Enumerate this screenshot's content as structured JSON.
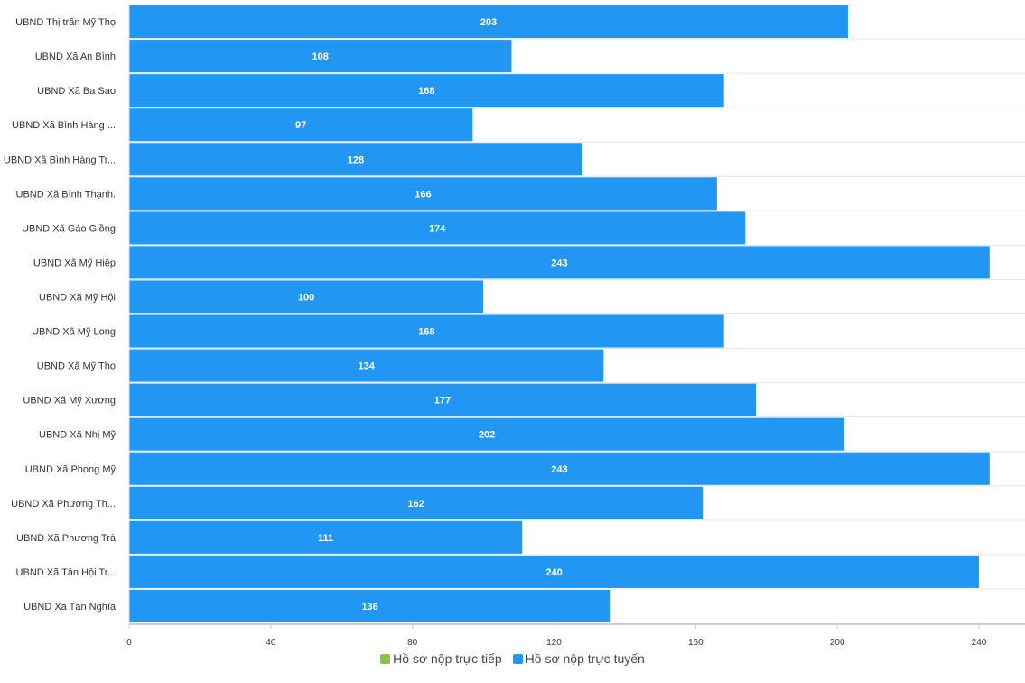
{
  "chart_data": {
    "type": "bar",
    "orientation": "horizontal",
    "categories": [
      "UBND Thị trấn Mỹ Thọ",
      "UBND Xã An Bình",
      "UBND Xã Ba Sao",
      "UBND Xã Bình Hàng ...",
      "UBND Xã Bình Hàng Tr...",
      "UBND Xã Bình Thạnh.",
      "UBND Xã Gáo Giồng",
      "UBND Xã Mỹ Hiệp",
      "UBND Xã Mỹ Hội",
      "UBND Xã Mỹ Long",
      "UBND Xã Mỹ Thọ",
      "UBND Xã Mỹ Xương",
      "UBND Xã Nhị Mỹ",
      "UBND Xã Phong Mỹ",
      "UBND Xã Phương Th...",
      "UBND Xã Phương Trà",
      "UBND Xã Tân Hội Tr...",
      "UBND Xã Tân Nghĩa"
    ],
    "series": [
      {
        "name": "Hồ sơ nộp trực tiếp",
        "color": "#8bc34a",
        "values": [
          0,
          0,
          0,
          0,
          0,
          0,
          0,
          0,
          0,
          0,
          0,
          0,
          0,
          0,
          0,
          0,
          0,
          0
        ]
      },
      {
        "name": "Hồ sơ nộp trực tuyến",
        "color": "#2196f3",
        "values": [
          203,
          108,
          168,
          97,
          128,
          166,
          174,
          243,
          100,
          168,
          134,
          177,
          202,
          243,
          162,
          111,
          240,
          136
        ]
      }
    ],
    "stacked": true,
    "xlim": [
      0,
      253
    ],
    "xticks": [
      0,
      40,
      80,
      120,
      160,
      200,
      240
    ],
    "grid": true,
    "legend_position": "bottom-center",
    "data_labels": true
  }
}
